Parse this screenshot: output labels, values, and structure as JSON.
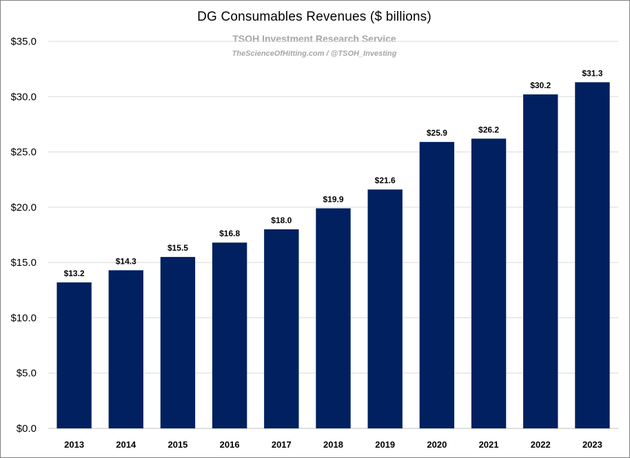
{
  "chart_data": {
    "type": "bar",
    "title": "DG Consumables Revenues ($ billions)",
    "watermark": {
      "line1": "TSOH Investment Research Service",
      "line2": "TheScienceOfHitting.com / @TSOH_Investing"
    },
    "categories": [
      "2013",
      "2014",
      "2015",
      "2016",
      "2017",
      "2018",
      "2019",
      "2020",
      "2021",
      "2022",
      "2023"
    ],
    "values": [
      13.2,
      14.3,
      15.5,
      16.8,
      18.0,
      19.9,
      21.6,
      25.9,
      26.2,
      30.2,
      31.3
    ],
    "data_labels": [
      "$13.2",
      "$14.3",
      "$15.5",
      "$16.8",
      "$18.0",
      "$19.9",
      "$21.6",
      "$25.9",
      "$26.2",
      "$30.2",
      "$31.3"
    ],
    "y_ticks": [
      0,
      5,
      10,
      15,
      20,
      25,
      30,
      35
    ],
    "y_tick_labels": [
      "$0.0",
      "$5.0",
      "$10.0",
      "$15.0",
      "$20.0",
      "$25.0",
      "$30.0",
      "$35.0"
    ],
    "ylim": [
      0,
      35
    ],
    "xlabel": "",
    "ylabel": "",
    "grid": true,
    "legend": "none",
    "colors": {
      "bar": "#002060",
      "grid": "#d9d9d9",
      "watermark": "#a6a6a6"
    }
  }
}
